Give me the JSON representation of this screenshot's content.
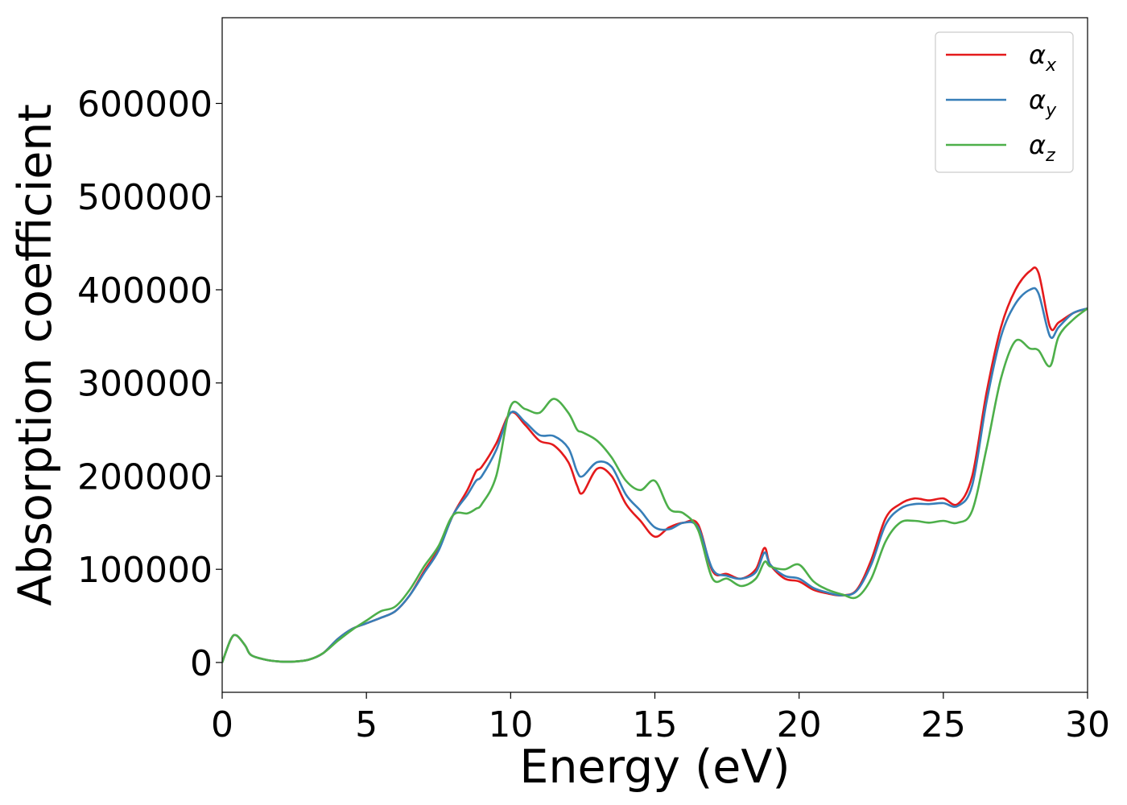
{
  "chart_data": {
    "type": "line",
    "xlabel": "Energy (eV)",
    "ylabel": "Absorption coefficient",
    "xlim": [
      0,
      30
    ],
    "ylim": [
      -32000,
      692000
    ],
    "xticks": [
      "0",
      "5",
      "10",
      "15",
      "20",
      "25",
      "30"
    ],
    "xtick_values": [
      0,
      5,
      10,
      15,
      20,
      25,
      30
    ],
    "yticks": [
      "0",
      "100000",
      "200000",
      "300000",
      "400000",
      "500000",
      "600000"
    ],
    "ytick_values": [
      0,
      100000,
      200000,
      300000,
      400000,
      500000,
      600000
    ],
    "grid": false,
    "legend_position": "top-right",
    "x": [
      0,
      0.3,
      0.5,
      0.8,
      1,
      1.5,
      2,
      2.5,
      3,
      3.5,
      4,
      4.5,
      5,
      5.5,
      6,
      6.5,
      7,
      7.5,
      8,
      8.5,
      8.8,
      9,
      9.5,
      10,
      10.5,
      11,
      11.5,
      12,
      12.3,
      12.5,
      13,
      13.5,
      14,
      14.5,
      15,
      15.5,
      16,
      16.5,
      17,
      17.5,
      18,
      18.5,
      18.8,
      19,
      19.5,
      20,
      20.5,
      21,
      21.5,
      22,
      22.5,
      23,
      23.5,
      24,
      24.5,
      25,
      25.5,
      26,
      26.5,
      27,
      27.5,
      28,
      28.3,
      28.7,
      29,
      29.5,
      30
    ],
    "series": [
      {
        "name": "α_x",
        "legend_main": "α",
        "legend_sub": "x",
        "color": "#e41a1c",
        "values": [
          0,
          25000,
          29000,
          18000,
          8000,
          3000,
          1000,
          1000,
          3000,
          10000,
          25000,
          36000,
          42000,
          48000,
          55000,
          72000,
          98000,
          122000,
          158000,
          185000,
          205000,
          210000,
          235000,
          268000,
          255000,
          238000,
          233000,
          215000,
          190000,
          182000,
          208000,
          200000,
          170000,
          152000,
          135000,
          145000,
          150000,
          148000,
          98000,
          95000,
          90000,
          100000,
          123000,
          105000,
          90000,
          87000,
          78000,
          74000,
          72000,
          78000,
          110000,
          155000,
          170000,
          176000,
          174000,
          176000,
          170000,
          200000,
          290000,
          360000,
          400000,
          420000,
          418000,
          360000,
          365000,
          375000,
          380000
        ]
      },
      {
        "name": "α_y",
        "legend_main": "α",
        "legend_sub": "y",
        "color": "#377eb8",
        "values": [
          0,
          25000,
          29000,
          18000,
          8000,
          3000,
          1000,
          1000,
          3000,
          10000,
          25000,
          36000,
          42000,
          48000,
          55000,
          72000,
          96000,
          120000,
          158000,
          180000,
          195000,
          200000,
          228000,
          268000,
          258000,
          244000,
          243000,
          230000,
          205000,
          200000,
          215000,
          210000,
          180000,
          163000,
          145000,
          143000,
          150000,
          145000,
          100000,
          93000,
          90000,
          97000,
          118000,
          105000,
          93000,
          90000,
          80000,
          75000,
          72000,
          77000,
          105000,
          148000,
          165000,
          170000,
          170000,
          171000,
          168000,
          190000,
          280000,
          350000,
          385000,
          400000,
          396000,
          350000,
          360000,
          375000,
          380000
        ]
      },
      {
        "name": "α_z",
        "legend_main": "α",
        "legend_sub": "z",
        "color": "#4daf4a",
        "values": [
          0,
          25000,
          29000,
          18000,
          8000,
          3000,
          1000,
          1000,
          3000,
          10000,
          23000,
          35000,
          45000,
          55000,
          60000,
          78000,
          103000,
          125000,
          158000,
          160000,
          165000,
          170000,
          200000,
          275000,
          272000,
          268000,
          283000,
          268000,
          250000,
          247000,
          238000,
          220000,
          195000,
          185000,
          195000,
          165000,
          160000,
          142000,
          90000,
          90000,
          82000,
          90000,
          108000,
          103000,
          100000,
          105000,
          87000,
          78000,
          73000,
          70000,
          90000,
          130000,
          150000,
          152000,
          150000,
          152000,
          150000,
          163000,
          230000,
          305000,
          345000,
          337000,
          335000,
          318000,
          350000,
          368000,
          380000
        ]
      }
    ]
  }
}
